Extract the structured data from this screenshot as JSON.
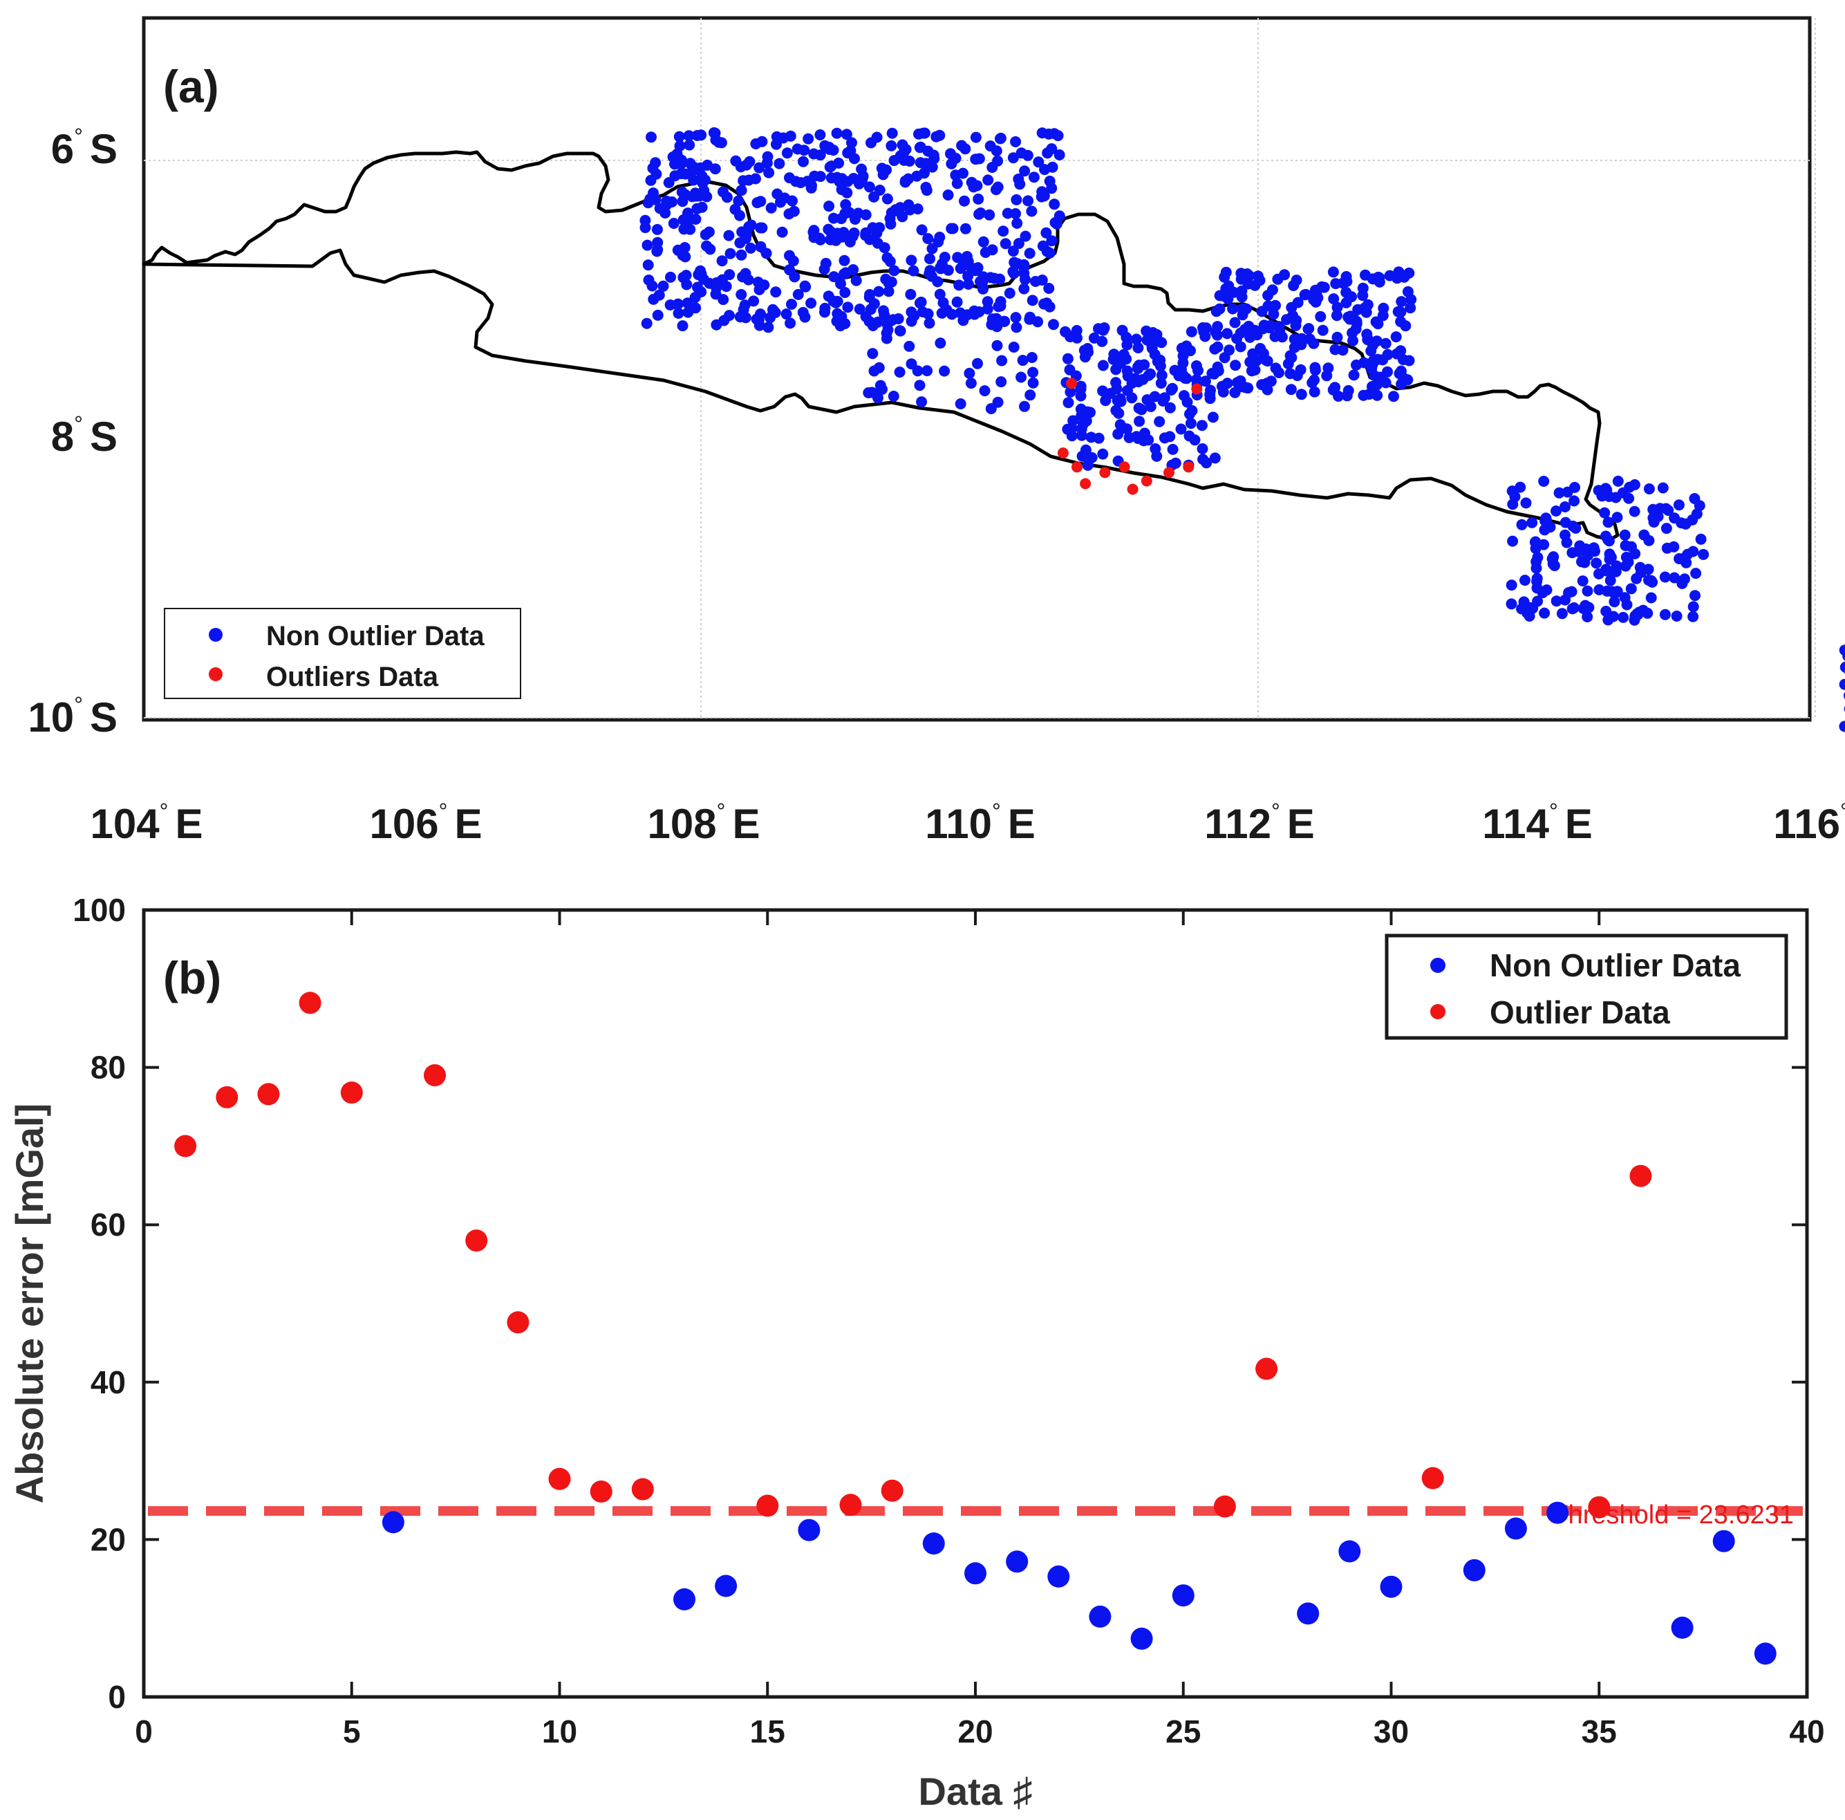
{
  "figure": {
    "panel_a_label": "(a)",
    "panel_b_label": "(b)"
  },
  "map": {
    "lat_ticks": [
      {
        "deg": "6",
        "hem": "S"
      },
      {
        "deg": "8",
        "hem": "S"
      },
      {
        "deg": "10",
        "hem": "S"
      }
    ],
    "lon_ticks": [
      {
        "deg": "104",
        "hem": "E"
      },
      {
        "deg": "106",
        "hem": "E"
      },
      {
        "deg": "108",
        "hem": "E"
      },
      {
        "deg": "110",
        "hem": "E"
      },
      {
        "deg": "112",
        "hem": "E"
      },
      {
        "deg": "114",
        "hem": "E"
      },
      {
        "deg": "116",
        "hem": ""
      }
    ],
    "degree_symbol": "°",
    "legend": {
      "non_outlier": "Non Outlier Data",
      "outlier": "Outliers Data"
    },
    "colors": {
      "non_outlier": "#0a14f0",
      "outlier": "#f01414",
      "coastline": "#000000"
    }
  },
  "chart_data": {
    "type": "scatter",
    "title": "",
    "xlabel": "Data ♯",
    "ylabel": "Absolute error [mGal]",
    "xlim": [
      0,
      40
    ],
    "ylim": [
      0,
      100
    ],
    "xticks": [
      0,
      5,
      10,
      15,
      20,
      25,
      30,
      35,
      40
    ],
    "yticks": [
      0,
      20,
      40,
      60,
      80,
      100
    ],
    "threshold": 23.6231,
    "threshold_label": "Threshold = 23.6231",
    "legend": {
      "position": "top-right",
      "entries": [
        "Non Outlier Data",
        "Outlier Data"
      ]
    },
    "series": [
      {
        "name": "Non Outlier Data",
        "color": "#0a14f0",
        "x": [
          6,
          13,
          14,
          16,
          19,
          20,
          21,
          22,
          23,
          24,
          25,
          28,
          29,
          30,
          32,
          33,
          34,
          37,
          38,
          39
        ],
        "y": [
          22.2,
          12.4,
          14.1,
          21.2,
          19.5,
          15.7,
          17.2,
          15.3,
          10.2,
          7.4,
          12.9,
          10.6,
          18.5,
          14.0,
          16.1,
          21.4,
          23.4,
          8.8,
          19.8,
          5.5
        ]
      },
      {
        "name": "Outlier Data",
        "color": "#f01414",
        "x": [
          1,
          2,
          3,
          4,
          5,
          7,
          8,
          9,
          10,
          11,
          12,
          15,
          17,
          18,
          26,
          27,
          31,
          35,
          36
        ],
        "y": [
          70.0,
          76.2,
          76.6,
          88.2,
          76.8,
          79.0,
          58.0,
          47.6,
          27.7,
          26.1,
          26.4,
          24.3,
          24.4,
          26.2,
          24.2,
          41.7,
          27.8,
          24.1,
          66.2
        ]
      }
    ]
  }
}
